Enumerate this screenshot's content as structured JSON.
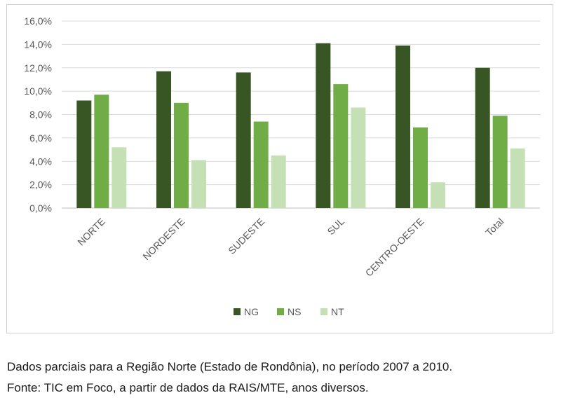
{
  "chart_data": {
    "type": "bar",
    "categories": [
      "NORTE",
      "NORDESTE",
      "SUDESTE",
      "SUL",
      "CENTRO-OESTE",
      "Total"
    ],
    "series": [
      {
        "name": "NG",
        "color": "#375623",
        "values": [
          9.2,
          11.7,
          11.6,
          14.1,
          13.9,
          12.0
        ]
      },
      {
        "name": "NS",
        "color": "#70ad47",
        "values": [
          9.7,
          9.0,
          7.4,
          10.6,
          6.9,
          7.9
        ]
      },
      {
        "name": "NT",
        "color": "#c5e0b4",
        "values": [
          5.2,
          4.1,
          4.5,
          8.6,
          2.2,
          5.1
        ]
      }
    ],
    "ylim": [
      0,
      16
    ],
    "yticks": [
      "0,0%",
      "2,0%",
      "4,0%",
      "6,0%",
      "8,0%",
      "10,0%",
      "12,0%",
      "14,0%",
      "16,0%"
    ],
    "grid": true,
    "legend_position": "bottom",
    "xlabel": "",
    "ylabel": ""
  },
  "caption": {
    "line1": "Dados parciais para a Região Norte (Estado de Rondônia), no período 2007 a 2010.",
    "line2": "Fonte: TIC em Foco, a partir de dados da RAIS/MTE, anos diversos."
  }
}
